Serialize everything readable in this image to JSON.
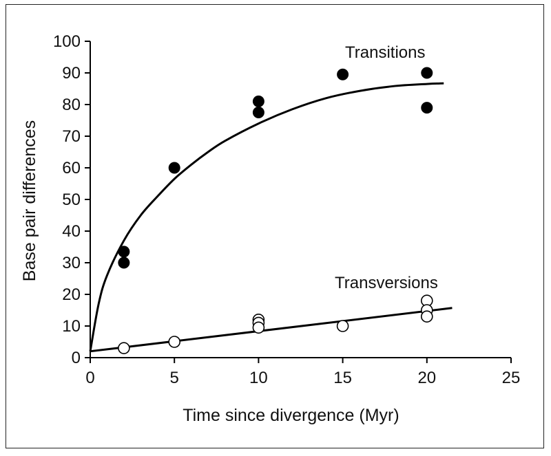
{
  "chart_data": {
    "type": "scatter",
    "xlabel": "Time since divergence (Myr)",
    "ylabel": "Base pair differences",
    "xlim": [
      0,
      25
    ],
    "ylim": [
      0,
      100
    ],
    "xticks": [
      0,
      5,
      10,
      15,
      20,
      25
    ],
    "yticks": [
      0,
      10,
      20,
      30,
      40,
      50,
      60,
      70,
      80,
      90,
      100
    ],
    "grid": false,
    "series": [
      {
        "name": "Transitions",
        "marker": "filled-circle",
        "color": "#000000",
        "points": [
          {
            "x": 2,
            "y": 33.5
          },
          {
            "x": 2,
            "y": 30
          },
          {
            "x": 5,
            "y": 60
          },
          {
            "x": 10,
            "y": 81
          },
          {
            "x": 10,
            "y": 77.5
          },
          {
            "x": 15,
            "y": 89.5
          },
          {
            "x": 20,
            "y": 90
          },
          {
            "x": 20,
            "y": 79
          }
        ],
        "fit_curve": [
          {
            "x": 0,
            "y": 2
          },
          {
            "x": 0.5,
            "y": 17
          },
          {
            "x": 1,
            "y": 26
          },
          {
            "x": 2,
            "y": 37
          },
          {
            "x": 3,
            "y": 45
          },
          {
            "x": 4,
            "y": 51
          },
          {
            "x": 5,
            "y": 56.5
          },
          {
            "x": 6,
            "y": 61
          },
          {
            "x": 7,
            "y": 65
          },
          {
            "x": 8,
            "y": 68.5
          },
          {
            "x": 10,
            "y": 74
          },
          {
            "x": 12,
            "y": 78.5
          },
          {
            "x": 14,
            "y": 82
          },
          {
            "x": 16,
            "y": 84.3
          },
          {
            "x": 18,
            "y": 85.8
          },
          {
            "x": 20,
            "y": 86.5
          },
          {
            "x": 21,
            "y": 86.7
          }
        ]
      },
      {
        "name": "Transversions",
        "marker": "open-circle",
        "color": "#000000",
        "points": [
          {
            "x": 2,
            "y": 3
          },
          {
            "x": 5,
            "y": 5
          },
          {
            "x": 10,
            "y": 12
          },
          {
            "x": 10,
            "y": 11
          },
          {
            "x": 10,
            "y": 9.5
          },
          {
            "x": 15,
            "y": 10
          },
          {
            "x": 20,
            "y": 18
          },
          {
            "x": 20,
            "y": 15
          },
          {
            "x": 20,
            "y": 13
          }
        ],
        "fit_line": [
          {
            "x": 0,
            "y": 2
          },
          {
            "x": 21.5,
            "y": 15.7
          }
        ]
      }
    ]
  }
}
